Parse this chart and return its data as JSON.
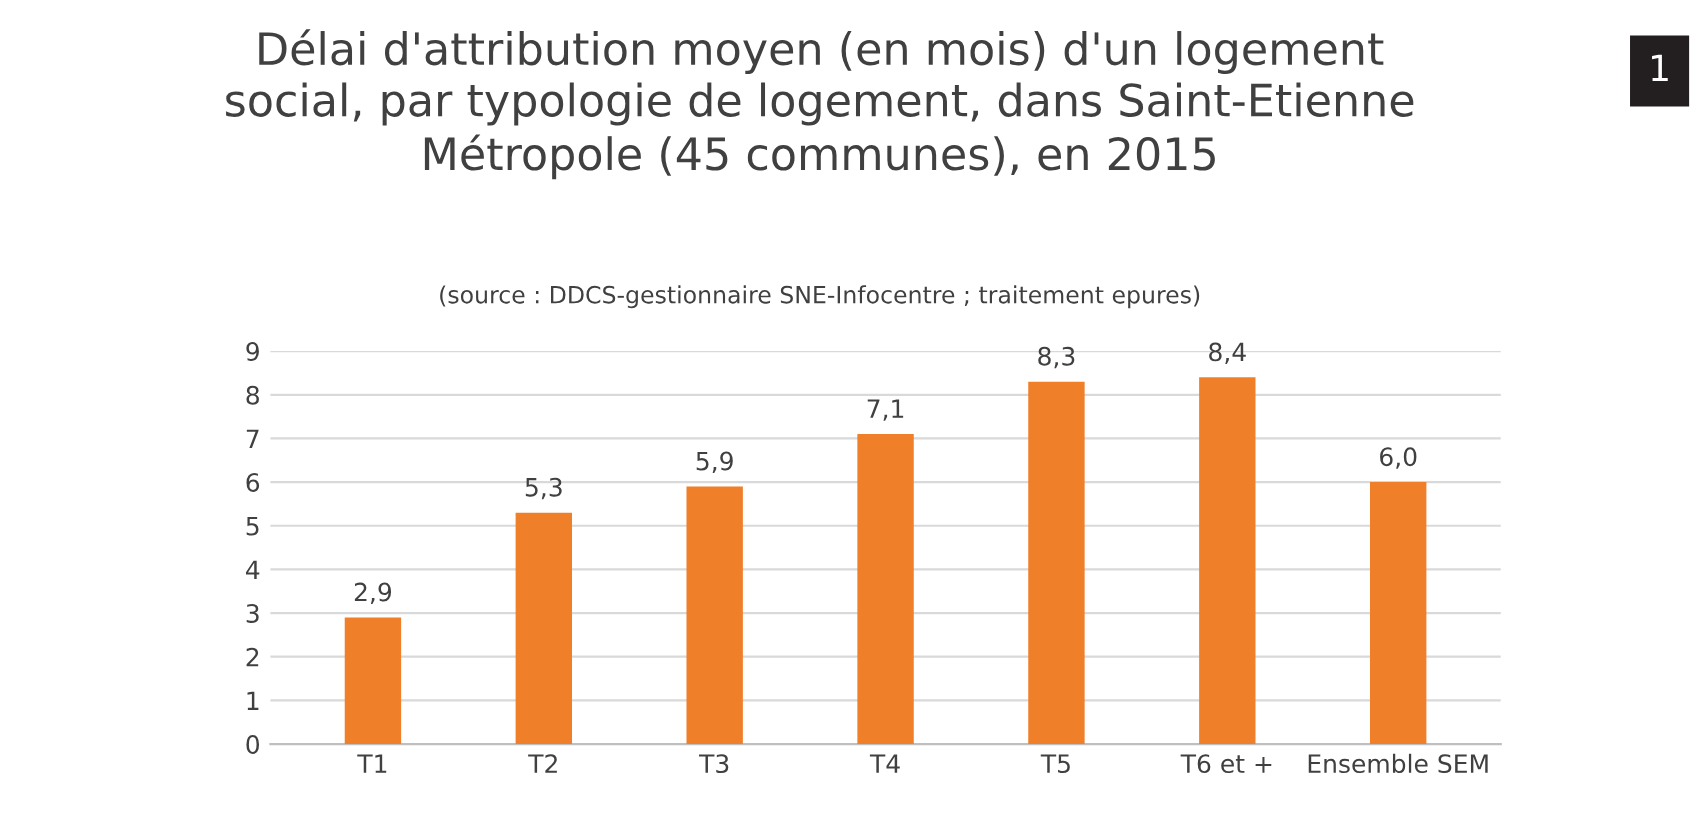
{
  "chart_data": {
    "type": "bar",
    "title": "Délai d'attribution moyen (en mois) d'un logement social, par typologie de logement, dans Saint-Etienne Métropole (45 communes), en 2015",
    "subtitle": "(source : DDCS-gestionnaire SNE-Infocentre ; traitement epures)",
    "categories": [
      "T1",
      "T2",
      "T3",
      "T4",
      "T5",
      "T6 et +",
      "Ensemble SEM"
    ],
    "values": [
      2.9,
      5.3,
      5.9,
      7.1,
      8.3,
      8.4,
      6.0
    ],
    "value_labels": [
      "2,9",
      "5,3",
      "5,9",
      "7,1",
      "8,3",
      "8,4",
      "6,0"
    ],
    "color": "#f07f2a",
    "ylim": [
      0,
      9
    ],
    "yticks": [
      0,
      1,
      2,
      3,
      4,
      5,
      6,
      7,
      8,
      9
    ],
    "grid": "y",
    "legend": false,
    "annotations": [
      "1"
    ]
  }
}
